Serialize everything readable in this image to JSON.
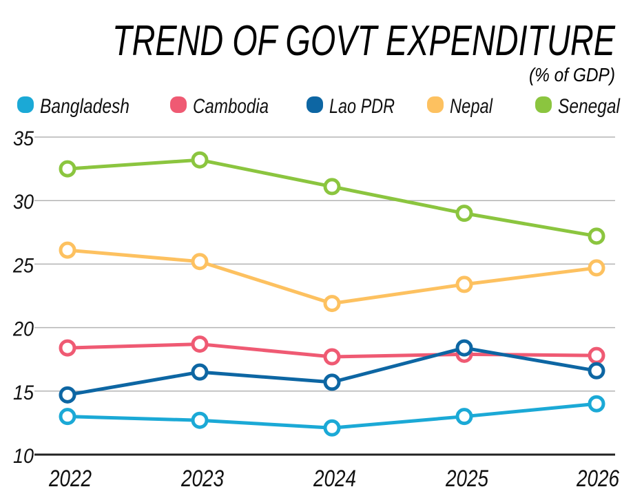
{
  "chart_data": {
    "type": "line",
    "title": "TREND OF GOVT EXPENDITURE",
    "subtitle": "(% of GDP)",
    "xlabel": "",
    "ylabel": "",
    "x": [
      "2022",
      "2023",
      "2024",
      "2025",
      "2026"
    ],
    "ylim": [
      10,
      35
    ],
    "yticks": [
      "10",
      "15",
      "20",
      "25",
      "30",
      "35"
    ],
    "grid": true,
    "legend_position": "top",
    "series": [
      {
        "name": "Bangladesh",
        "color": "#1ba9d6",
        "values": [
          13.0,
          12.7,
          12.1,
          13.0,
          14.0
        ]
      },
      {
        "name": "Cambodia",
        "color": "#ef5a73",
        "values": [
          18.4,
          18.7,
          17.7,
          17.9,
          17.8
        ]
      },
      {
        "name": "Lao PDR",
        "color": "#0d66a3",
        "values": [
          14.7,
          16.5,
          15.7,
          18.4,
          16.6
        ]
      },
      {
        "name": "Nepal",
        "color": "#fdc160",
        "values": [
          26.1,
          25.2,
          21.9,
          23.4,
          24.7
        ]
      },
      {
        "name": "Senegal",
        "color": "#8bc53f",
        "values": [
          32.5,
          33.2,
          31.1,
          29.0,
          27.2
        ]
      }
    ]
  }
}
